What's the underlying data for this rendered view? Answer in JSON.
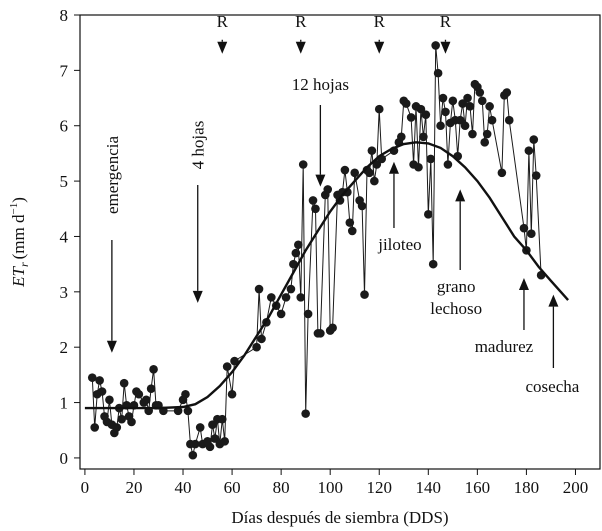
{
  "chart_data": {
    "type": "scatter",
    "xlabel": "Días después de siembra (DDS)",
    "ylabel": "ET",
    "ylabel_sub": "r",
    "ylabel_unit": "(mm d",
    "ylabel_exp": "−1",
    "ylabel_close": ")",
    "xlim": [
      -2,
      210
    ],
    "ylim": [
      -0.2,
      8
    ],
    "xticks": [
      0,
      20,
      40,
      60,
      80,
      100,
      120,
      140,
      160,
      180,
      200
    ],
    "yticks": [
      0,
      1,
      2,
      3,
      4,
      5,
      6,
      7,
      8
    ],
    "series": [
      {
        "kind": "points",
        "color": "#1a1a1a",
        "x": [
          3,
          4,
          5,
          6,
          7,
          8,
          9,
          10,
          11,
          12,
          13,
          14,
          15,
          16,
          17,
          18,
          19,
          20,
          21,
          22,
          24,
          25,
          26,
          27,
          28,
          29,
          30,
          32,
          38,
          40,
          41,
          42,
          43,
          44,
          45,
          47,
          48,
          50,
          51,
          52,
          53,
          54,
          55,
          56,
          57,
          58,
          60,
          61,
          70,
          71,
          72,
          74,
          76,
          78,
          80,
          82,
          84,
          85,
          86,
          87,
          88,
          89,
          90,
          91,
          93,
          94,
          95,
          96,
          98,
          99,
          100,
          101,
          103,
          104,
          105,
          106,
          107,
          108,
          109,
          110,
          112,
          113,
          114,
          115,
          116,
          117,
          118,
          119,
          120,
          121,
          126,
          128,
          129,
          130,
          131,
          133,
          134,
          135,
          136,
          137,
          138,
          139,
          140,
          141,
          142,
          143,
          144,
          145,
          146,
          147,
          148,
          149,
          150,
          151,
          152,
          153,
          154,
          155,
          156,
          157,
          158,
          159,
          160,
          161,
          162,
          163,
          164,
          165,
          166,
          170,
          171,
          172,
          173,
          179,
          180,
          181,
          182,
          183,
          184,
          186
        ],
        "values": [
          1.45,
          0.55,
          1.15,
          1.4,
          1.2,
          0.75,
          0.65,
          1.05,
          0.6,
          0.45,
          0.55,
          0.9,
          0.7,
          1.35,
          0.95,
          0.75,
          0.65,
          0.95,
          1.2,
          1.15,
          1.0,
          1.05,
          0.85,
          1.25,
          1.6,
          0.95,
          0.95,
          0.85,
          0.85,
          1.05,
          1.15,
          0.85,
          0.25,
          0.05,
          0.25,
          0.55,
          0.25,
          0.3,
          0.2,
          0.6,
          0.35,
          0.7,
          0.25,
          0.7,
          0.3,
          1.65,
          1.15,
          1.75,
          2.0,
          3.05,
          2.15,
          2.45,
          2.9,
          2.75,
          2.6,
          2.9,
          3.05,
          3.5,
          3.7,
          3.85,
          2.9,
          5.3,
          0.8,
          2.6,
          4.65,
          4.5,
          2.25,
          2.25,
          4.75,
          4.85,
          2.3,
          2.35,
          4.75,
          4.65,
          4.8,
          5.2,
          4.8,
          4.25,
          4.1,
          5.15,
          4.65,
          4.55,
          2.95,
          5.2,
          5.15,
          5.55,
          5.0,
          5.3,
          6.3,
          5.4,
          5.55,
          5.7,
          5.8,
          6.45,
          6.4,
          6.15,
          5.3,
          6.35,
          5.25,
          6.3,
          5.8,
          6.2,
          4.4,
          5.4,
          3.5,
          7.45,
          6.95,
          6.0,
          6.5,
          6.25,
          5.3,
          6.05,
          6.45,
          6.1,
          5.45,
          6.1,
          6.4,
          6.0,
          6.5,
          6.35,
          5.85,
          6.75,
          6.7,
          6.6,
          6.45,
          5.7,
          5.85,
          6.35,
          6.1,
          5.15,
          6.55,
          6.6,
          6.1,
          4.15,
          3.75,
          5.55,
          4.05,
          5.75,
          5.1,
          3.3
        ]
      },
      {
        "kind": "curve",
        "color": "#111111",
        "x": [
          0,
          10,
          20,
          30,
          40,
          45,
          50,
          55,
          60,
          65,
          70,
          75,
          80,
          85,
          90,
          95,
          100,
          105,
          110,
          115,
          120,
          125,
          130,
          135,
          140,
          145,
          150,
          155,
          160,
          165,
          170,
          175,
          180,
          185,
          190,
          195,
          197
        ],
        "values": [
          0.9,
          0.9,
          0.9,
          0.9,
          0.92,
          0.97,
          1.1,
          1.3,
          1.55,
          1.85,
          2.2,
          2.55,
          2.95,
          3.35,
          3.75,
          4.1,
          4.45,
          4.75,
          5.0,
          5.25,
          5.45,
          5.58,
          5.67,
          5.7,
          5.68,
          5.6,
          5.45,
          5.25,
          5.0,
          4.7,
          4.35,
          4.0,
          3.75,
          3.45,
          3.2,
          2.95,
          2.85
        ]
      }
    ],
    "annotations": [
      {
        "lines": [
          "R"
        ],
        "x": 56,
        "y": 7.3
      },
      {
        "lines": [
          "R"
        ],
        "x": 88,
        "y": 7.3
      },
      {
        "lines": [
          "R"
        ],
        "x": 120,
        "y": 7.3
      },
      {
        "lines": [
          "R"
        ],
        "x": 147,
        "y": 7.3
      },
      {
        "lines": [
          "emergencia"
        ],
        "x": 11,
        "y": 1.9
      },
      {
        "lines": [
          "4 hojas"
        ],
        "x": 46,
        "y": 2.8
      },
      {
        "lines": [
          "12 hojas"
        ],
        "x": 96,
        "y": 4.9
      },
      {
        "lines": [
          "jiloteo"
        ],
        "x": 126,
        "y": 5.35
      },
      {
        "lines": [
          "grano",
          "lechoso"
        ],
        "x": 153,
        "y": 4.85
      },
      {
        "lines": [
          "madurez"
        ],
        "x": 179,
        "y": 3.25
      },
      {
        "lines": [
          "cosecha"
        ],
        "x": 191,
        "y": 2.95
      }
    ]
  }
}
